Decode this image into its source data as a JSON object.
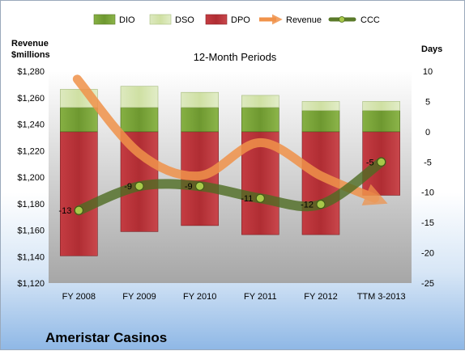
{
  "chart_data": {
    "type": "bar",
    "title": "12-Month Periods",
    "company": "Ameristar Casinos",
    "left_axis_title_line1": "Revenue",
    "left_axis_title_line2": "$millions",
    "right_axis_title": "Days",
    "categories": [
      "FY 2008",
      "FY 2009",
      "FY 2010",
      "FY 2011",
      "FY 2012",
      "TTM 3-2013"
    ],
    "left_ylim": [
      1120,
      1280
    ],
    "left_ticks": [
      "$1,120",
      "$1,140",
      "$1,160",
      "$1,180",
      "$1,200",
      "$1,220",
      "$1,240",
      "$1,260",
      "$1,280"
    ],
    "right_ylim": [
      -25,
      10
    ],
    "right_ticks": [
      "-25",
      "-20",
      "-15",
      "-10",
      "-5",
      "0",
      "5",
      "10"
    ],
    "legend_position": "top",
    "series": [
      {
        "name": "DIO",
        "axis": "right",
        "kind": "stacked-bar",
        "values": [
          4,
          4,
          4,
          4,
          3.5,
          3.5
        ],
        "color": "#7aa33a"
      },
      {
        "name": "DSO",
        "axis": "right",
        "kind": "stacked-bar",
        "values": [
          3,
          3.5,
          2.5,
          2,
          1.5,
          1.5
        ],
        "color": "#d6e6b0"
      },
      {
        "name": "DPO",
        "axis": "right",
        "kind": "bar-negative",
        "values": [
          -20.5,
          -16.5,
          -15.5,
          -17,
          -17,
          -10.5
        ],
        "color": "#b2363b"
      },
      {
        "name": "Revenue",
        "axis": "left",
        "kind": "arrow-line",
        "values": [
          1274,
          1218,
          1201,
          1226,
          1201,
          1184
        ],
        "color": "#f0924a"
      },
      {
        "name": "CCC",
        "axis": "right",
        "kind": "line-markers",
        "values": [
          -13,
          -9,
          -9,
          -11,
          -12,
          -5
        ],
        "labels": [
          "-13",
          "-9",
          "-9",
          "-11",
          "-12",
          "-5"
        ],
        "color": "#5a7a2a"
      }
    ]
  }
}
